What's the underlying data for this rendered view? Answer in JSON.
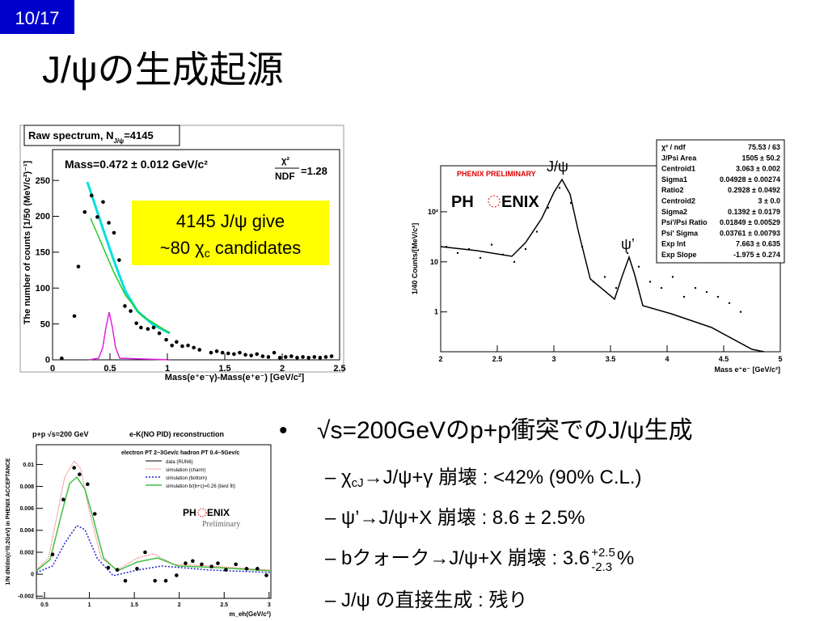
{
  "slide": {
    "page": "10/17",
    "title": "J/ψの生成起源"
  },
  "bullet": {
    "mark": "•",
    "text": "√s=200GeVのp+p衝突でのJ/ψ生成",
    "items": [
      [
        "–  χ",
        "cJ",
        "→J/ψ+γ 崩壊 : <42% (90% C.L.)"
      ],
      [
        "–  ψ’→J/ψ+X 崩壊 : 8.6 ± 2.5%"
      ],
      [
        "– bクォーク→J/ψ+X 崩壊 : 3.6 ",
        "+2.5",
        "-2.3",
        "%"
      ],
      [
        "– J/ψ の直接生成 : 残り"
      ]
    ]
  },
  "figures": [
    {
      "type": "scatter",
      "title": [
        "Raw spectrum, N",
        "J/ψ",
        "=4145"
      ],
      "fit_text": "Mass=0.472 ± 0.012 GeV/c²",
      "chi2": "χ²",
      "ndf": "NDF",
      "chi2_value": "=1.28",
      "ylabel": "The number of counts [1/50 (MeV/c²)⁻¹]",
      "xlabel": "Mass(e⁺e⁻γ)-Mass(e⁺e⁻) [GeV/c²]",
      "annotation": [
        "4145 J/ψ give",
        "~80 χ",
        "c",
        " candidates"
      ],
      "xlim": [
        0,
        2.5
      ],
      "ylim": [
        0,
        293
      ],
      "xticks": [
        0,
        0.5,
        1,
        1.5,
        2,
        2.5
      ],
      "yticks": [
        0,
        50,
        100,
        150,
        200,
        250
      ],
      "series": [
        {
          "color": "#000000",
          "x": [
            0.08,
            0.19,
            0.225,
            0.28,
            0.34,
            0.39,
            0.44,
            0.49,
            0.535,
            0.58,
            0.63,
            0.68,
            0.73,
            0.77,
            0.83,
            0.88,
            0.93,
            0.99,
            1.04,
            1.08,
            1.13,
            1.18,
            1.23,
            1.28,
            1.38,
            1.43,
            1.48,
            1.53,
            1.58,
            1.63,
            1.68,
            1.73,
            1.78,
            1.83,
            1.88,
            1.93,
            1.98,
            2.03,
            2.08,
            2.13,
            2.18,
            2.23,
            2.28,
            2.33,
            2.38,
            2.43
          ],
          "y": [
            2,
            61,
            130,
            206,
            229,
            199,
            220,
            191,
            177,
            139,
            75,
            68,
            51,
            45,
            43,
            45,
            37,
            28,
            20,
            25,
            19,
            20,
            17,
            14,
            10,
            12,
            10,
            9,
            8,
            10,
            7,
            6,
            8,
            5,
            4,
            10,
            3,
            4,
            5,
            3,
            4,
            3,
            4,
            3,
            4,
            5
          ]
        }
      ]
    },
    {
      "type": "scatter",
      "jpsi_label": "J/ψ",
      "psi2_label": "ψ’",
      "logo_caption": "PHENIX PRELIMINARY",
      "logo": [
        "PH",
        "ENIX"
      ],
      "ylabel": "1/40 Counts/[MeV/c²]",
      "xlabel": "Mass e⁺e⁻ [GeV/c²]",
      "ylog": true,
      "xlim": [
        2,
        5
      ],
      "ylim": [
        0.16,
        830
      ],
      "xticks": [
        2,
        2.5,
        3,
        3.5,
        4,
        4.5,
        5
      ],
      "yticks": [
        1,
        10,
        {
          "value": 100,
          "label": "10²"
        }
      ],
      "stats": [
        [
          "χ² / ndf",
          "75.53 / 63"
        ],
        [
          "J/Psi Area",
          "1505 ± 50.2"
        ],
        [
          "Centroid1",
          "3.063 ± 0.002"
        ],
        [
          "Sigma1",
          "0.04928 ± 0.00274"
        ],
        [
          "Ratio2",
          "0.2928 ± 0.0492"
        ],
        [
          "Centroid2",
          "3 ± 0.0"
        ],
        [
          "Sigma2",
          "0.1392 ± 0.0179"
        ],
        [
          "Psi'/Psi Ratio",
          "0.01849 ± 0.00529"
        ],
        [
          "Psi' Sigma",
          "0.03761 ± 0.00793"
        ],
        [
          "Exp Int",
          "7.663 ± 0.635"
        ],
        [
          "Exp Slope",
          "-1.975 ± 0.274"
        ]
      ],
      "series": [
        {
          "color": "#000000",
          "x": [
            2.05,
            2.15,
            2.25,
            2.35,
            2.45,
            2.55,
            2.65,
            2.75,
            2.85,
            2.95,
            3.05,
            3.15,
            3.25,
            3.35,
            3.45,
            3.55,
            3.65,
            3.75,
            3.85,
            3.95,
            4.05,
            4.15,
            4.25,
            4.35,
            4.45,
            4.55,
            4.65
          ],
          "y": [
            20,
            15,
            18,
            12,
            22,
            14,
            10,
            18,
            40,
            120,
            300,
            150,
            20,
            4,
            5,
            3,
            15,
            8,
            4,
            3,
            5,
            2,
            3,
            2.5,
            2,
            1.5,
            1
          ]
        }
      ]
    },
    {
      "type": "scatter",
      "title": "p+p   √s=200 GeV",
      "subtitle": "e-K(NO PID) reconstruction",
      "cuts": "electron PT 2~3Gev/c hadron PT 0.4~5Gev/c",
      "legend": [
        "data (RUN6)",
        "simulation (charm)",
        "simulation (bottom)",
        "simulation   b/(b+c)=0.26 (best fit)"
      ],
      "logo": [
        "PH",
        "ENIX"
      ],
      "logo_caption": "Preliminary",
      "ylabel": "1/N dN/dm(c²/0.2GeV) in PHENIX ACCEPTANCE",
      "xlabel": "m_eh(GeV/c²)",
      "xlim": [
        0.41,
        3.02
      ],
      "ylim": [
        -0.0022,
        0.0118
      ],
      "xticks": [
        0.5,
        1,
        1.5,
        2,
        2.5,
        3
      ],
      "yticks": [
        -0.002,
        0,
        0.002,
        0.004,
        0.006,
        0.008,
        0.01
      ],
      "series": [
        {
          "color": "#000000",
          "x": [
            0.59,
            0.71,
            0.83,
            0.89,
            0.98,
            1.06,
            1.21,
            1.31,
            1.4,
            1.53,
            1.62,
            1.73,
            1.85,
            1.97,
            2.07,
            2.15,
            2.25,
            2.36,
            2.43,
            2.52,
            2.63,
            2.75,
            2.87,
            2.97
          ],
          "y": [
            0.0018,
            0.0068,
            0.0097,
            0.0091,
            0.0082,
            0.0055,
            0.0006,
            0.0004,
            -0.0006,
            0.0005,
            0.002,
            -0.0006,
            -0.0006,
            -0.0001,
            0.001,
            0.0012,
            0.0009,
            0.0007,
            0.001,
            0.0004,
            0.0009,
            0.0005,
            0.0005,
            -0.0001
          ]
        }
      ]
    }
  ]
}
